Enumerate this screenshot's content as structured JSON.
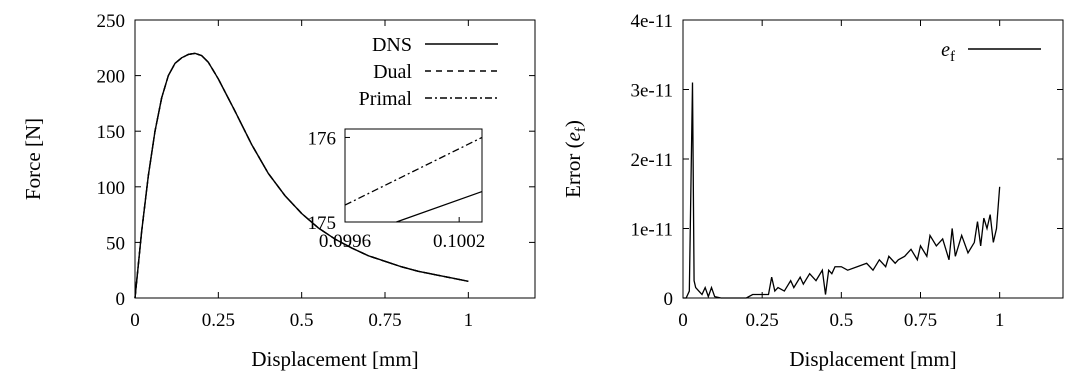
{
  "chart_data": [
    {
      "type": "line",
      "xlabel": "Displacement [mm]",
      "ylabel": "Force [N]",
      "xlim": [
        0,
        1.2
      ],
      "ylim": [
        0,
        250
      ],
      "xticks": [
        0,
        0.25,
        0.5,
        0.75,
        1
      ],
      "xtick_labels": [
        "0",
        "0.25",
        "0.5",
        "0.75",
        "1"
      ],
      "yticks": [
        0,
        50,
        100,
        150,
        200,
        250
      ],
      "ytick_labels": [
        "0",
        "50",
        "100",
        "150",
        "200",
        "250"
      ],
      "legend_position": "top-right",
      "series": [
        {
          "name": "DNS",
          "dash": "solid",
          "x": [
            0,
            0.02,
            0.04,
            0.06,
            0.08,
            0.1,
            0.12,
            0.14,
            0.16,
            0.18,
            0.2,
            0.22,
            0.25,
            0.3,
            0.35,
            0.4,
            0.45,
            0.5,
            0.55,
            0.6,
            0.65,
            0.7,
            0.75,
            0.8,
            0.85,
            0.9,
            0.95,
            1.0
          ],
          "y": [
            0,
            60,
            110,
            150,
            180,
            200,
            211,
            216,
            219,
            220,
            218,
            212,
            197,
            168,
            138,
            112,
            92,
            76,
            63,
            53,
            45,
            38,
            33,
            28,
            24,
            21,
            18,
            15
          ]
        },
        {
          "name": "Dual",
          "dash": "dashed",
          "x": [
            0,
            0.02,
            0.04,
            0.06,
            0.08,
            0.1,
            0.12,
            0.14,
            0.16,
            0.18,
            0.2,
            0.22,
            0.25,
            0.3,
            0.35,
            0.4,
            0.45,
            0.5,
            0.55,
            0.6,
            0.65,
            0.7,
            0.75,
            0.8,
            0.85,
            0.9,
            0.95,
            1.0
          ],
          "y": [
            0,
            60,
            110,
            150,
            180,
            200,
            211,
            216,
            219,
            220,
            218,
            212,
            197,
            168,
            138,
            112,
            92,
            76,
            63,
            53,
            45,
            38,
            33,
            28,
            24,
            21,
            18,
            15
          ]
        },
        {
          "name": "Primal",
          "dash": "dash-dot",
          "x": [
            0,
            0.02,
            0.04,
            0.06,
            0.08,
            0.1,
            0.12,
            0.14,
            0.16,
            0.18,
            0.2,
            0.22,
            0.25,
            0.3,
            0.35,
            0.4,
            0.45,
            0.5,
            0.55,
            0.6,
            0.65,
            0.7,
            0.75,
            0.8,
            0.85,
            0.9,
            0.95,
            1.0
          ],
          "y": [
            0,
            60,
            110,
            150,
            180,
            200,
            211,
            216,
            219,
            220,
            218,
            212,
            197,
            168,
            138,
            112,
            92,
            76,
            63,
            53,
            45,
            38,
            33,
            28,
            24,
            21,
            18,
            15
          ]
        }
      ],
      "inset": {
        "xlim": [
          0.0996,
          0.10032
        ],
        "ylim": [
          175,
          176.1
        ],
        "xticks": [
          0.0996,
          0.1002
        ],
        "xtick_labels": [
          "0.0996",
          "0.1002"
        ],
        "yticks": [
          175,
          176
        ],
        "ytick_labels": [
          "175",
          "176"
        ],
        "series": [
          {
            "name": "DNS",
            "dash": "solid",
            "x": [
              0.09987,
              0.10032
            ],
            "y": [
              175.0,
              175.36
            ]
          },
          {
            "name": "Primal",
            "dash": "dash-dot",
            "x": [
              0.0996,
              0.10032
            ],
            "y": [
              175.2,
              176.0
            ]
          }
        ]
      }
    },
    {
      "type": "line",
      "xlabel": "Displacement [mm]",
      "ylabel_text": "Error (",
      "ylabel_sym": "e",
      "ylabel_sub": "f",
      "ylabel_close": ")",
      "xlim": [
        0,
        1.2
      ],
      "ylim": [
        0,
        4e-11
      ],
      "xticks": [
        0,
        0.25,
        0.5,
        0.75,
        1
      ],
      "xtick_labels": [
        "0",
        "0.25",
        "0.5",
        "0.75",
        "1"
      ],
      "yticks": [
        0,
        1e-11,
        2e-11,
        3e-11,
        4e-11
      ],
      "ytick_labels": [
        "0",
        "1e-11",
        "2e-11",
        "3e-11",
        "4e-11"
      ],
      "legend_position": "top-right",
      "series": [
        {
          "name": "e",
          "name_sub": "f",
          "x": [
            0,
            0.01,
            0.02,
            0.03,
            0.035,
            0.04,
            0.05,
            0.06,
            0.07,
            0.08,
            0.09,
            0.1,
            0.12,
            0.15,
            0.2,
            0.22,
            0.25,
            0.27,
            0.28,
            0.29,
            0.3,
            0.32,
            0.34,
            0.35,
            0.37,
            0.38,
            0.4,
            0.42,
            0.44,
            0.45,
            0.46,
            0.47,
            0.48,
            0.5,
            0.52,
            0.55,
            0.58,
            0.6,
            0.62,
            0.64,
            0.65,
            0.67,
            0.68,
            0.7,
            0.72,
            0.74,
            0.75,
            0.77,
            0.78,
            0.8,
            0.82,
            0.84,
            0.85,
            0.86,
            0.88,
            0.9,
            0.92,
            0.93,
            0.94,
            0.95,
            0.96,
            0.97,
            0.98,
            0.99,
            1.0
          ],
          "y": [
            0,
            0,
            1e-12,
            3.1e-11,
            2.5e-12,
            1.5e-12,
            1e-12,
            5e-13,
            1.5e-12,
            2e-13,
            1.5e-12,
            2e-13,
            0,
            0,
            0,
            5e-13,
            5e-13,
            5e-13,
            3e-12,
            1e-12,
            1.5e-12,
            1e-12,
            2.5e-12,
            1.5e-12,
            3e-12,
            2e-12,
            3.5e-12,
            2.5e-12,
            4e-12,
            5e-13,
            4e-12,
            3.5e-12,
            4.5e-12,
            4.5e-12,
            4e-12,
            4.5e-12,
            5e-12,
            4e-12,
            5.5e-12,
            4.5e-12,
            6e-12,
            5e-12,
            5.5e-12,
            6e-12,
            7e-12,
            5.5e-12,
            7.5e-12,
            6e-12,
            9e-12,
            7.5e-12,
            8.5e-12,
            5.5e-12,
            1e-11,
            6e-12,
            9e-12,
            6.5e-12,
            8e-12,
            1.1e-11,
            7.5e-12,
            1.15e-11,
            1e-11,
            1.2e-11,
            8e-12,
            1e-11,
            1.6e-11
          ]
        }
      ]
    }
  ]
}
